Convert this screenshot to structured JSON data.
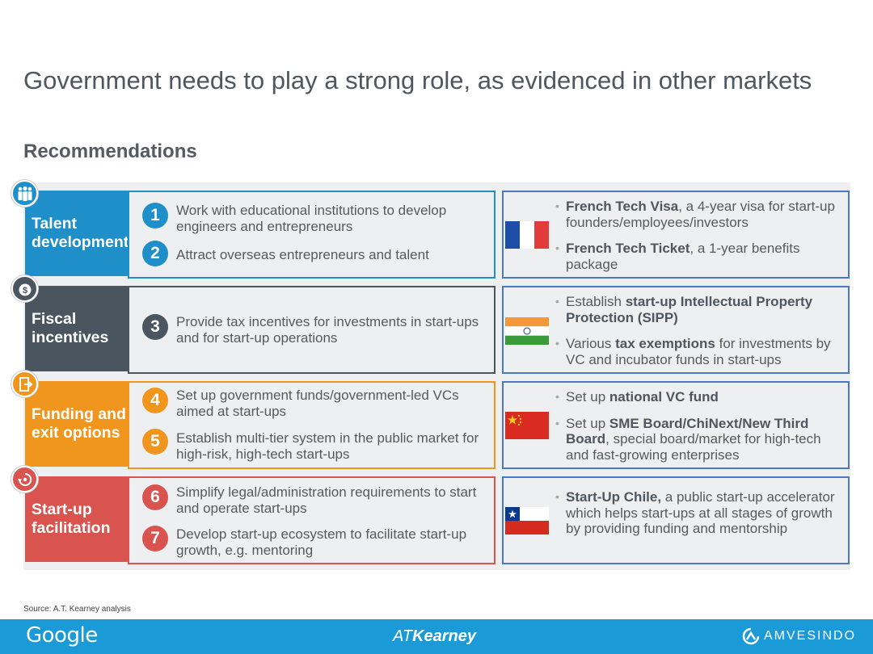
{
  "title": "Government needs to play a strong role, as evidenced in other markets",
  "subtitle": "Recommendations",
  "rows": [
    {
      "category": "Talent development",
      "icon": "people-icon",
      "color": "#1e8fc9",
      "recs": [
        {
          "num": "1",
          "text": "Work with educational institutions to develop engineers and entrepreneurs"
        },
        {
          "num": "2",
          "text": "Attract overseas entrepreneurs and talent"
        }
      ],
      "country": "France",
      "bullets": [
        {
          "bold": "French Tech Visa",
          "rest": ", a 4-year visa for start-up founders/employees/investors"
        },
        {
          "bold": "French Tech Ticket",
          "rest": ", a 1-year benefits package"
        }
      ]
    },
    {
      "category": "Fiscal incentives",
      "icon": "money-bag-icon",
      "color": "#4a5560",
      "recs": [
        {
          "num": "3",
          "text": "Provide tax incentives for investments in start-ups and for start-up operations"
        }
      ],
      "country": "India",
      "bullets": [
        {
          "pre": "Establish ",
          "bold": "start-up Intellectual Property Protection (SIPP)",
          "rest": ""
        },
        {
          "pre": "Various ",
          "bold": "tax exemptions",
          "rest": " for investments by VC and incubator funds in start-ups"
        }
      ]
    },
    {
      "category": "Funding and exit options",
      "icon": "exit-door-icon",
      "color": "#f0961e",
      "recs": [
        {
          "num": "4",
          "text": "Set up government funds/government-led VCs aimed at start-ups"
        },
        {
          "num": "5",
          "text": "Establish multi-tier system in the public market for high-risk, high-tech start-ups"
        }
      ],
      "country": "China",
      "bullets": [
        {
          "pre": "Set up ",
          "bold": "national VC fund",
          "rest": ""
        },
        {
          "pre": "Set up ",
          "bold": "SME Board/ChiNext/New Third Board",
          "rest": ", special board/market for high-tech and fast-growing enterprises"
        }
      ]
    },
    {
      "category": "Start-up facilitation",
      "icon": "cycle-icon",
      "color": "#d9534f",
      "recs": [
        {
          "num": "6",
          "text": "Simplify legal/administration requirements to start and operate start-ups"
        },
        {
          "num": "7",
          "text": "Develop start-up ecosystem to facilitate start-up growth, e.g. mentoring"
        }
      ],
      "country": "Chile",
      "bullets": [
        {
          "pre": "",
          "bold": "Start-Up Chile,",
          "rest": " a public start-up accelerator which helps start-ups at all stages of growth by providing funding and mentorship"
        }
      ]
    }
  ],
  "source": "Source: A.T. Kearney analysis",
  "footer": {
    "google": "Google",
    "atk_a": "AT",
    "atk_b": "Kearney",
    "amvesindo": "AMVESINDO"
  }
}
